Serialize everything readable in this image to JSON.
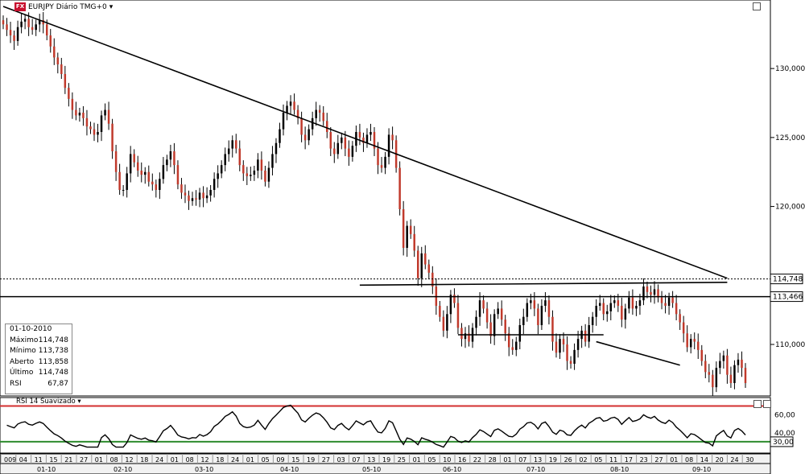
{
  "header": {
    "logo_text": "FX",
    "title": "EURJPY Diário TMG+0",
    "dropdown_glyph": "▾"
  },
  "info_panel": {
    "date": "01-10-2010",
    "rows": [
      {
        "label": "Máximo",
        "value": "114,748"
      },
      {
        "label": "Mínimo",
        "value": "113,738"
      },
      {
        "label": "Aberto",
        "value": "113,858"
      },
      {
        "label": "Último",
        "value": "114,748"
      },
      {
        "label": "RSI",
        "value": "67,87"
      }
    ]
  },
  "rsi_panel": {
    "title": "RSI 14 Suavizado ▾",
    "levels": [
      70,
      30
    ],
    "tick_labels": [
      "60,00",
      "40,00"
    ],
    "level_label": "30,00"
  },
  "price_axis": {
    "tick_labels": [
      "130,000",
      "125,000",
      "120,000",
      "110,000"
    ],
    "highlight_labels": [
      "114,748",
      "113,466"
    ]
  },
  "time_axis": {
    "days": [
      "009",
      "04",
      "11",
      "15",
      "21",
      "27",
      "01",
      "08",
      "12",
      "18",
      "24",
      "01",
      "08",
      "12",
      "18",
      "24",
      "01",
      "05",
      "09",
      "15",
      "19",
      "27",
      "03",
      "07",
      "13",
      "19",
      "25",
      "01",
      "05",
      "10",
      "16",
      "22",
      "28",
      "01",
      "07",
      "13",
      "19",
      "26",
      "02",
      "05",
      "11",
      "17",
      "23",
      "27",
      "01",
      "08",
      "14",
      "20",
      "24",
      "30"
    ],
    "months": [
      "01-10",
      "02-10",
      "03-10",
      "04-10",
      "05-10",
      "06-10",
      "07-10",
      "08-10",
      "09-10"
    ]
  },
  "colors": {
    "up": "#000000",
    "down": "#c0392b",
    "upper_rsi_line": "#d32f2f",
    "lower_rsi_line": "#2e8b2e",
    "trendline": "#000000"
  },
  "chart_data": {
    "type": "candlestick",
    "y_axis": {
      "ylim": [
        106.5,
        134.5
      ],
      "ticks": [
        130,
        125,
        120,
        110
      ]
    },
    "horizontal_levels": [
      114.748,
      113.466
    ],
    "trendlines": [
      {
        "from": [
          0,
          134.5
        ],
        "to": [
          199,
          114.8
        ]
      },
      {
        "from": [
          98,
          114.3
        ],
        "to": [
          199,
          114.5
        ]
      },
      {
        "from": [
          125,
          110.7
        ],
        "to": [
          165,
          110.7
        ]
      },
      {
        "from": [
          163,
          110.2
        ],
        "to": [
          186,
          108.5
        ]
      }
    ],
    "closes": [
      133.2,
      132.8,
      132.4,
      132.0,
      133.0,
      133.4,
      133.6,
      133.0,
      132.8,
      133.2,
      133.5,
      133.2,
      132.4,
      131.6,
      130.8,
      130.3,
      129.6,
      128.6,
      127.8,
      127.0,
      126.6,
      126.8,
      126.4,
      125.8,
      125.6,
      125.2,
      125.4,
      126.6,
      127.0,
      126.0,
      124.0,
      122.5,
      121.2,
      121.2,
      122.4,
      123.8,
      123.2,
      122.6,
      122.3,
      122.5,
      121.8,
      121.6,
      121.2,
      122.0,
      123.0,
      123.4,
      124.0,
      123.0,
      121.6,
      121.0,
      120.8,
      120.4,
      120.6,
      120.5,
      121.0,
      120.6,
      120.8,
      121.2,
      122.0,
      122.4,
      123.0,
      123.8,
      124.2,
      124.8,
      124.2,
      123.0,
      122.4,
      122.2,
      122.3,
      122.6,
      123.4,
      122.6,
      121.8,
      122.8,
      123.8,
      124.6,
      125.6,
      126.8,
      127.3,
      127.6,
      127.0,
      126.4,
      125.2,
      124.8,
      125.6,
      126.4,
      127.0,
      126.8,
      126.2,
      125.4,
      124.2,
      123.8,
      124.6,
      125.0,
      124.2,
      123.6,
      124.4,
      125.4,
      125.0,
      124.6,
      125.2,
      125.4,
      124.2,
      123.0,
      122.8,
      123.6,
      125.2,
      124.8,
      122.8,
      119.8,
      117.0,
      118.6,
      118.0,
      116.8,
      114.8,
      116.6,
      115.8,
      115.2,
      114.2,
      112.8,
      112.0,
      111.0,
      112.2,
      113.6,
      113.0,
      111.2,
      110.4,
      110.8,
      110.2,
      111.2,
      112.0,
      113.2,
      112.6,
      111.6,
      110.6,
      112.2,
      112.6,
      111.8,
      110.8,
      109.8,
      109.6,
      110.2,
      111.4,
      112.0,
      113.0,
      113.2,
      112.6,
      111.4,
      112.8,
      113.2,
      112.0,
      110.2,
      109.4,
      110.4,
      110.0,
      108.8,
      108.6,
      109.6,
      110.4,
      111.0,
      110.2,
      111.4,
      112.0,
      112.8,
      113.0,
      112.2,
      112.4,
      113.0,
      113.2,
      112.8,
      111.8,
      112.6,
      113.4,
      112.6,
      112.8,
      113.2,
      114.2,
      113.8,
      113.6,
      114.0,
      113.4,
      113.0,
      112.8,
      113.4,
      113.0,
      112.2,
      111.6,
      110.8,
      109.8,
      110.4,
      110.2,
      109.6,
      108.8,
      108.0,
      107.8,
      106.9,
      108.3,
      108.8,
      109.2,
      107.8,
      107.2,
      108.5,
      108.9,
      108.3,
      107.2
    ]
  }
}
